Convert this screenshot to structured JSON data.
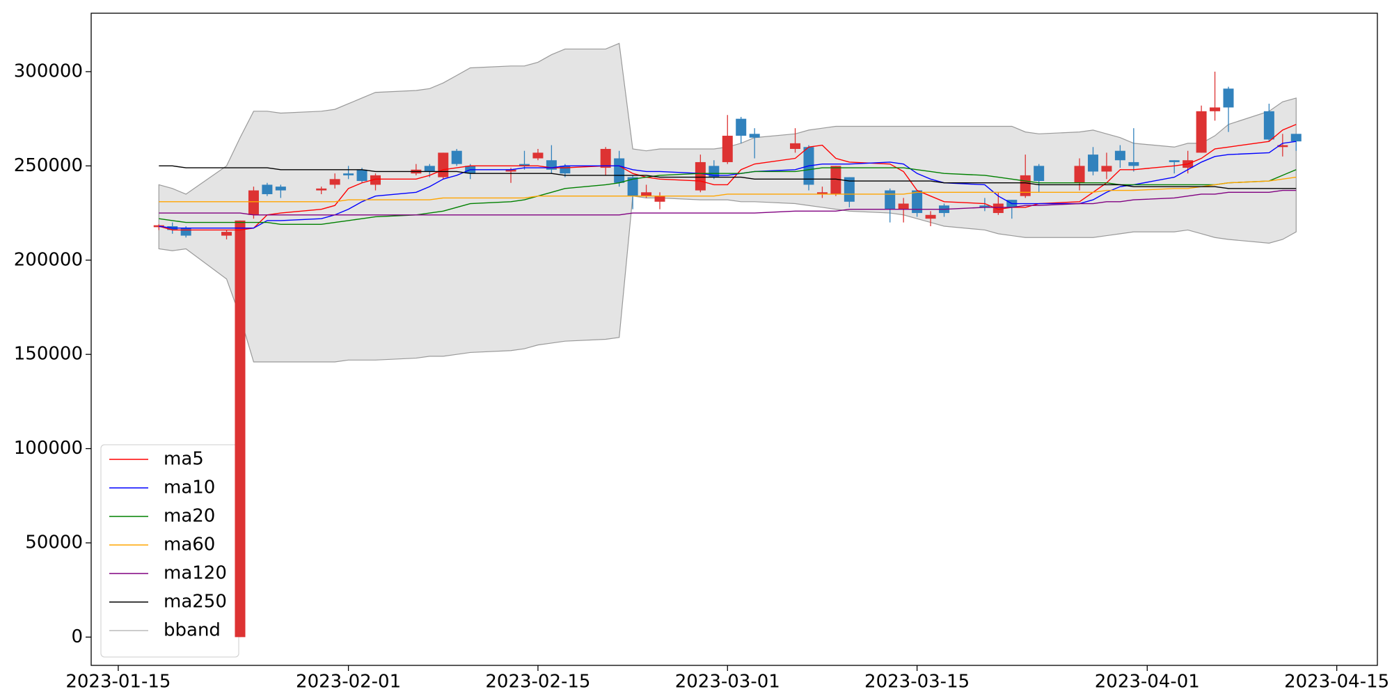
{
  "chart_data": {
    "type": "candlestick",
    "x": [
      "2023-01-18",
      "2023-01-19",
      "2023-01-20",
      "2023-01-23",
      "2023-01-24",
      "2023-01-25",
      "2023-01-26",
      "2023-01-27",
      "2023-01-30",
      "2023-01-31",
      "2023-02-01",
      "2023-02-02",
      "2023-02-03",
      "2023-02-06",
      "2023-02-07",
      "2023-02-08",
      "2023-02-09",
      "2023-02-10",
      "2023-02-13",
      "2023-02-14",
      "2023-02-15",
      "2023-02-16",
      "2023-02-17",
      "2023-02-20",
      "2023-02-21",
      "2023-02-22",
      "2023-02-23",
      "2023-02-24",
      "2023-02-27",
      "2023-02-28",
      "2023-03-01",
      "2023-03-02",
      "2023-03-03",
      "2023-03-06",
      "2023-03-07",
      "2023-03-08",
      "2023-03-09",
      "2023-03-10",
      "2023-03-13",
      "2023-03-14",
      "2023-03-15",
      "2023-03-16",
      "2023-03-17",
      "2023-03-20",
      "2023-03-21",
      "2023-03-22",
      "2023-03-23",
      "2023-03-24",
      "2023-03-27",
      "2023-03-28",
      "2023-03-29",
      "2023-03-30",
      "2023-03-31",
      "2023-04-03",
      "2023-04-04",
      "2023-04-05",
      "2023-04-06",
      "2023-04-07",
      "2023-04-10",
      "2023-04-11",
      "2023-04-12"
    ],
    "open": [
      217500,
      218000,
      217000,
      213000,
      0,
      224000,
      240000,
      239000,
      237000,
      240000,
      246000,
      248000,
      240000,
      246000,
      250000,
      244000,
      258000,
      250000,
      247000,
      251000,
      254000,
      253000,
      250000,
      249000,
      254000,
      244000,
      234000,
      231000,
      237000,
      250000,
      252000,
      275000,
      267000,
      259000,
      260000,
      235000,
      235000,
      244000,
      237000,
      227000,
      237000,
      222000,
      229000,
      229000,
      225000,
      232000,
      234000,
      250000,
      241000,
      256000,
      247000,
      258000,
      252000,
      253000,
      249000,
      257000,
      279000,
      291000,
      279000,
      260000,
      267000
    ],
    "high": [
      219000,
      220000,
      218000,
      216000,
      221000,
      239000,
      241000,
      240000,
      239000,
      246000,
      250000,
      249000,
      246000,
      251000,
      251000,
      257000,
      259000,
      251000,
      249000,
      258000,
      259000,
      261000,
      251000,
      260000,
      258000,
      245000,
      240000,
      236000,
      256000,
      253000,
      277000,
      276000,
      270000,
      270000,
      261000,
      239000,
      250000,
      244000,
      238000,
      233000,
      237000,
      226000,
      230000,
      233000,
      236000,
      232000,
      256000,
      251000,
      254000,
      260000,
      257000,
      261000,
      270000,
      253000,
      258000,
      282000,
      300000,
      292000,
      283000,
      267000,
      267000
    ],
    "low": [
      216000,
      214000,
      212000,
      211000,
      0,
      222000,
      234000,
      233000,
      235000,
      238000,
      243000,
      241000,
      237000,
      245000,
      244000,
      243000,
      250000,
      243000,
      241000,
      248000,
      253000,
      246000,
      244000,
      245000,
      239000,
      227000,
      233000,
      227000,
      236000,
      243000,
      251000,
      262000,
      254000,
      257000,
      237000,
      233000,
      234000,
      228000,
      220000,
      220000,
      223000,
      218000,
      223000,
      226000,
      224000,
      222000,
      233000,
      236000,
      237000,
      245000,
      243000,
      249000,
      247000,
      246000,
      246000,
      257000,
      274000,
      268000,
      263000,
      255000,
      258000
    ],
    "close": [
      218500,
      216000,
      213000,
      215000,
      221000,
      237000,
      235000,
      237000,
      238000,
      243000,
      245000,
      242000,
      245000,
      248000,
      247000,
      257000,
      251000,
      246000,
      248000,
      250000,
      257000,
      248000,
      246000,
      259000,
      241000,
      234000,
      236000,
      234000,
      252000,
      244000,
      266000,
      266000,
      265000,
      262000,
      240000,
      236000,
      250000,
      231000,
      227000,
      230000,
      225000,
      224000,
      225000,
      228000,
      230000,
      228000,
      245000,
      242000,
      250000,
      247000,
      250000,
      253000,
      250000,
      252000,
      253000,
      279000,
      281000,
      281000,
      264000,
      261000,
      263000
    ],
    "up_color": "#dd3333",
    "down_color": "#3182bd",
    "series": [
      {
        "name": "ma5",
        "color": "#ff0000",
        "values": [
          218000,
          216000,
          216000,
          216000,
          216000,
          217000,
          224000,
          225000,
          227000,
          229000,
          238000,
          241000,
          243000,
          243000,
          245000,
          248000,
          249000,
          250000,
          250000,
          250000,
          250000,
          249000,
          249000,
          250000,
          250000,
          246000,
          244000,
          243000,
          242000,
          240000,
          240000,
          248000,
          251000,
          254000,
          260000,
          261000,
          254000,
          252000,
          251000,
          247000,
          237000,
          234000,
          231000,
          230000,
          227000,
          228000,
          228000,
          230000,
          231000,
          236000,
          241000,
          248000,
          248000,
          250000,
          251000,
          254000,
          259000,
          260000,
          263000,
          269000,
          272000
        ]
      },
      {
        "name": "ma10",
        "color": "#0000ff",
        "values": [
          218000,
          217000,
          217000,
          217000,
          217000,
          217000,
          221000,
          221000,
          222000,
          224000,
          227000,
          231000,
          234000,
          236000,
          239000,
          243000,
          245000,
          248000,
          248000,
          249000,
          249000,
          249000,
          250000,
          250000,
          250000,
          248000,
          247000,
          247000,
          246000,
          245000,
          245000,
          246000,
          247000,
          248000,
          250000,
          251000,
          251000,
          251000,
          252000,
          251000,
          246000,
          243000,
          241000,
          240000,
          234000,
          230000,
          230000,
          230000,
          230000,
          232000,
          236000,
          239000,
          240000,
          244000,
          248000,
          252000,
          255000,
          256000,
          257000,
          262000,
          263000
        ]
      },
      {
        "name": "ma20",
        "color": "#008000",
        "values": [
          222000,
          221000,
          220000,
          220000,
          220000,
          220000,
          220000,
          219000,
          219000,
          220000,
          221000,
          222000,
          223000,
          224000,
          225000,
          226000,
          228000,
          230000,
          231000,
          232000,
          234000,
          236000,
          238000,
          240000,
          241000,
          243000,
          244000,
          245000,
          246000,
          246000,
          246000,
          246000,
          247000,
          247000,
          248000,
          249000,
          249000,
          249000,
          249000,
          249000,
          248000,
          247000,
          246000,
          245000,
          244000,
          243000,
          242000,
          241000,
          241000,
          241000,
          241000,
          240000,
          240000,
          240000,
          240000,
          240000,
          240000,
          241000,
          242000,
          245000,
          248000
        ]
      },
      {
        "name": "ma60",
        "color": "#ffa500",
        "values": [
          231000,
          231000,
          231000,
          231000,
          231000,
          231000,
          231000,
          231000,
          231000,
          231000,
          232000,
          232000,
          232000,
          232000,
          232000,
          233000,
          233000,
          233000,
          233000,
          233000,
          234000,
          234000,
          234000,
          234000,
          234000,
          234000,
          234000,
          234000,
          234000,
          234000,
          235000,
          235000,
          235000,
          235000,
          235000,
          235000,
          235000,
          235000,
          235000,
          235000,
          236000,
          236000,
          236000,
          236000,
          236000,
          236000,
          236000,
          236000,
          236000,
          236000,
          237000,
          237000,
          237000,
          238000,
          238000,
          239000,
          240000,
          241000,
          242000,
          243000,
          244000
        ]
      },
      {
        "name": "ma120",
        "color": "#800080",
        "values": [
          225000,
          225000,
          225000,
          225000,
          225000,
          224000,
          224000,
          224000,
          224000,
          224000,
          224000,
          224000,
          224000,
          224000,
          224000,
          224000,
          224000,
          224000,
          224000,
          224000,
          224000,
          224000,
          224000,
          224000,
          224000,
          225000,
          225000,
          225000,
          225000,
          225000,
          225000,
          225000,
          225000,
          226000,
          226000,
          226000,
          226000,
          227000,
          227000,
          227000,
          227000,
          227000,
          227000,
          228000,
          228000,
          228000,
          229000,
          229000,
          230000,
          230000,
          231000,
          231000,
          232000,
          233000,
          234000,
          235000,
          235000,
          236000,
          236000,
          237000,
          237000
        ]
      },
      {
        "name": "ma250",
        "color": "#000000",
        "values": [
          250000,
          250000,
          249000,
          249000,
          249000,
          249000,
          249000,
          248000,
          248000,
          248000,
          248000,
          248000,
          247000,
          247000,
          247000,
          247000,
          247000,
          246000,
          246000,
          246000,
          246000,
          246000,
          245000,
          245000,
          245000,
          245000,
          245000,
          244000,
          244000,
          244000,
          244000,
          244000,
          243000,
          243000,
          243000,
          243000,
          243000,
          242000,
          242000,
          242000,
          242000,
          242000,
          241000,
          241000,
          241000,
          241000,
          241000,
          240000,
          240000,
          240000,
          240000,
          240000,
          239000,
          239000,
          239000,
          239000,
          239000,
          238000,
          238000,
          238000,
          238000
        ]
      }
    ],
    "bband": {
      "name": "bband",
      "color": "#999999",
      "fill": "#e4e4e4",
      "upper": [
        240000,
        238000,
        235000,
        250000,
        265000,
        279000,
        279000,
        278000,
        279000,
        280000,
        283000,
        286000,
        289000,
        290000,
        291000,
        294000,
        298000,
        302000,
        303000,
        303000,
        305000,
        309000,
        312000,
        312000,
        315000,
        259000,
        258000,
        259000,
        259000,
        259000,
        260000,
        262000,
        265000,
        267000,
        269000,
        270000,
        271000,
        271000,
        271000,
        271000,
        271000,
        271000,
        271000,
        271000,
        271000,
        271000,
        268000,
        267000,
        268000,
        269000,
        267000,
        265000,
        262000,
        260000,
        262000,
        262000,
        266000,
        272000,
        279000,
        284000,
        286000
      ],
      "lower": [
        206000,
        205000,
        206000,
        190000,
        170000,
        146000,
        146000,
        146000,
        146000,
        146000,
        147000,
        147000,
        147000,
        148000,
        149000,
        149000,
        150000,
        151000,
        152000,
        153000,
        155000,
        156000,
        157000,
        158000,
        159000,
        234000,
        233000,
        233000,
        232000,
        232000,
        232000,
        231000,
        231000,
        230000,
        229000,
        228000,
        227000,
        226000,
        225000,
        224000,
        222000,
        220000,
        218000,
        216000,
        214000,
        213000,
        212000,
        212000,
        212000,
        212000,
        213000,
        214000,
        215000,
        215000,
        216000,
        214000,
        212000,
        211000,
        209000,
        211000,
        215000
      ]
    },
    "xlim": [
      "2023-01-13",
      "2023-04-18"
    ],
    "xticks": [
      "2023-01-15",
      "2023-02-01",
      "2023-02-15",
      "2023-03-01",
      "2023-03-15",
      "2023-04-01",
      "2023-04-15"
    ],
    "ylim": [
      -15000,
      331000
    ],
    "yticks": [
      0,
      50000,
      100000,
      150000,
      200000,
      250000,
      300000
    ],
    "legend": "lower left"
  }
}
